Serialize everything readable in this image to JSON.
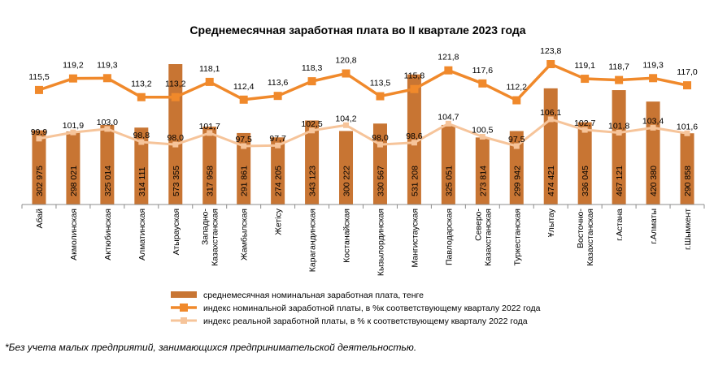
{
  "chart_data": {
    "type": "bar",
    "title": "Среднемесячная заработная  плата во II квартале 2023 года",
    "categories": [
      [
        "Абай"
      ],
      [
        "Акмолинская"
      ],
      [
        "Актюбинская"
      ],
      [
        "Алматинская"
      ],
      [
        "Атырауская"
      ],
      [
        "Западно-",
        "Казахстанская"
      ],
      [
        "Жамбылская"
      ],
      [
        "Жетісу"
      ],
      [
        "Карагандинская"
      ],
      [
        "Костанайская"
      ],
      [
        "Кызылординская"
      ],
      [
        "Мангистауская"
      ],
      [
        "Павлодарская"
      ],
      [
        "Северо-",
        "Казахстанская"
      ],
      [
        "Туркестанская"
      ],
      [
        "Ұлытау"
      ],
      [
        "Восточно-",
        "Казахстанская"
      ],
      [
        "г.Астана"
      ],
      [
        "г.Алматы"
      ],
      [
        "г.Шымкент"
      ]
    ],
    "bar_labels": [
      "302 975",
      "298 021",
      "325 014",
      "314 111",
      "573 355",
      "317 958",
      "291 861",
      "274 205",
      "343 123",
      "300 222",
      "330 567",
      "531 208",
      "325 051",
      "273 814",
      "299 942",
      "474 421",
      "336 045",
      "467 121",
      "420 380",
      "290 858"
    ],
    "series": [
      {
        "name": "среднемесячная номинальная заработная плата, тенге",
        "kind": "bar",
        "color": "#C87533",
        "values": [
          302975,
          298021,
          325014,
          314111,
          573355,
          317958,
          291861,
          274205,
          343123,
          300222,
          330567,
          531208,
          325051,
          273814,
          299942,
          474421,
          336045,
          467121,
          420380,
          290858
        ]
      },
      {
        "name": "индекс номинальной заработной платы, в %к соответствующему кварталу 2022 года",
        "kind": "line",
        "color": "#F0892B",
        "labels": [
          "115,5",
          "119,2",
          "119,3",
          "113,2",
          "113,2",
          "118,1",
          "112,4",
          "113,6",
          "118,3",
          "120,8",
          "113,5",
          "115,8",
          "121,8",
          "117,6",
          "112,2",
          "123,8",
          "119,1",
          "118,7",
          "119,3",
          "117,0"
        ],
        "values": [
          115.5,
          119.2,
          119.3,
          113.2,
          113.2,
          118.1,
          112.4,
          113.6,
          118.3,
          120.8,
          113.5,
          115.8,
          121.8,
          117.6,
          112.2,
          123.8,
          119.1,
          118.7,
          119.3,
          117.0
        ]
      },
      {
        "name": "индекс реальной заработной платы, в % к соответствующему кварталу 2022 года",
        "kind": "line",
        "color": "#F6C49A",
        "labels": [
          "99,9",
          "101,9",
          "103,0",
          "98,8",
          "98,0",
          "101,7",
          "97,5",
          "97,7",
          "102,5",
          "104,2",
          "98,0",
          "98,6",
          "104,7",
          "100,5",
          "97,5",
          "106,1",
          "102,7",
          "101,8",
          "103,4",
          "101,6"
        ],
        "values": [
          99.9,
          101.9,
          103.0,
          98.8,
          98.0,
          101.7,
          97.5,
          97.7,
          102.5,
          104.2,
          98.0,
          98.6,
          104.7,
          100.5,
          97.5,
          106.1,
          102.7,
          101.8,
          103.4,
          101.6
        ]
      }
    ],
    "legend_position": "bottom",
    "grid": false
  },
  "footnote": "*Без учета малых предприятий, занимающихся предпринимательской деятельностью."
}
